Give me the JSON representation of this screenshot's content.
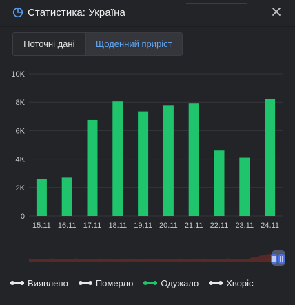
{
  "header": {
    "title": "Статистика: Україна",
    "icon": "pie-chart-icon",
    "close_icon": "close-icon"
  },
  "tabs": [
    {
      "label": "Поточні дані",
      "active": false
    },
    {
      "label": "Щоденний приріст",
      "active": true
    }
  ],
  "colors": {
    "accent": "#62a6f0",
    "bar": "#1fc46d",
    "navigator": "#5a2a27",
    "handle": "#4a6fe0"
  },
  "chart_data": {
    "type": "bar",
    "categories": [
      "15.11",
      "16.11",
      "17.11",
      "18.11",
      "19.11",
      "20.11",
      "21.11",
      "22.11",
      "23.11",
      "24.11"
    ],
    "series": [
      {
        "name": "Одужало",
        "values": [
          2600,
          2700,
          6750,
          8050,
          7350,
          7800,
          7950,
          4600,
          4100,
          8250
        ]
      }
    ],
    "yticks": [
      "0",
      "2K",
      "4K",
      "6K",
      "8K",
      "10K"
    ],
    "ylim": [
      0,
      10000
    ],
    "grid": true,
    "legend_position": "bottom",
    "navigator": true
  },
  "legend": [
    {
      "label": "Виявлено",
      "color": "#e8e8e8"
    },
    {
      "label": "Померло",
      "color": "#e8e8e8"
    },
    {
      "label": "Одужало",
      "color": "#1fc46d"
    },
    {
      "label": "Хворіє",
      "color": "#e8e8e8"
    }
  ]
}
